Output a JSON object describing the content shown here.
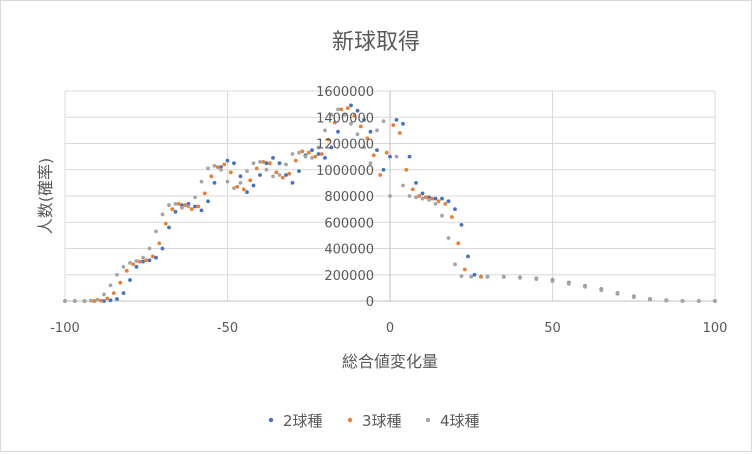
{
  "chart_data": {
    "type": "scatter",
    "title": "新球取得",
    "xlabel": "総合値変化量",
    "ylabel": "人数(確率)",
    "xlim": [
      -100,
      100
    ],
    "ylim": [
      0,
      1600000
    ],
    "xticks": [
      "-100",
      "-50",
      "0",
      "50",
      "100"
    ],
    "yticks": [
      "0",
      "200000",
      "400000",
      "600000",
      "800000",
      "1000000",
      "1200000",
      "1400000",
      "1600000"
    ],
    "grid": "major gridlines on both axes",
    "legend_position": "bottom",
    "colors": {
      "2": "#4472c4",
      "3": "#ed7d31",
      "4": "#a5a5a5"
    },
    "series": [
      {
        "name": "2球種",
        "color": "#4472c4",
        "points": [
          [
            -100,
            0
          ],
          [
            -97,
            0
          ],
          [
            -94,
            0
          ],
          [
            -91,
            0
          ],
          [
            -88,
            0
          ],
          [
            -86,
            5000
          ],
          [
            -84,
            15000
          ],
          [
            -82,
            60000
          ],
          [
            -80,
            160000
          ],
          [
            -78,
            260000
          ],
          [
            -76,
            300000
          ],
          [
            -74,
            310000
          ],
          [
            -72,
            330000
          ],
          [
            -70,
            400000
          ],
          [
            -68,
            560000
          ],
          [
            -66,
            680000
          ],
          [
            -64,
            730000
          ],
          [
            -62,
            740000
          ],
          [
            -60,
            720000
          ],
          [
            -58,
            690000
          ],
          [
            -56,
            760000
          ],
          [
            -54,
            900000
          ],
          [
            -52,
            1020000
          ],
          [
            -50,
            1070000
          ],
          [
            -48,
            1050000
          ],
          [
            -46,
            950000
          ],
          [
            -44,
            830000
          ],
          [
            -42,
            880000
          ],
          [
            -40,
            960000
          ],
          [
            -38,
            1050000
          ],
          [
            -36,
            1090000
          ],
          [
            -34,
            1050000
          ],
          [
            -32,
            960000
          ],
          [
            -30,
            900000
          ],
          [
            -28,
            990000
          ],
          [
            -26,
            1110000
          ],
          [
            -24,
            1150000
          ],
          [
            -22,
            1120000
          ],
          [
            -20,
            1090000
          ],
          [
            -18,
            1170000
          ],
          [
            -16,
            1290000
          ],
          [
            -14,
            1420000
          ],
          [
            -12,
            1490000
          ],
          [
            -10,
            1450000
          ],
          [
            -8,
            1380000
          ],
          [
            -6,
            1290000
          ],
          [
            -4,
            1150000
          ],
          [
            -2,
            1000000
          ],
          [
            0,
            1100000
          ],
          [
            2,
            1380000
          ],
          [
            4,
            1350000
          ],
          [
            6,
            1100000
          ],
          [
            8,
            900000
          ],
          [
            10,
            820000
          ],
          [
            12,
            790000
          ],
          [
            14,
            780000
          ],
          [
            16,
            780000
          ],
          [
            18,
            760000
          ],
          [
            20,
            700000
          ],
          [
            22,
            580000
          ],
          [
            24,
            340000
          ],
          [
            26,
            200000
          ],
          [
            28,
            185000
          ],
          [
            30,
            185000
          ],
          [
            35,
            185000
          ],
          [
            40,
            180000
          ],
          [
            45,
            172000
          ],
          [
            50,
            160000
          ],
          [
            55,
            140000
          ],
          [
            60,
            115000
          ],
          [
            65,
            90000
          ],
          [
            70,
            60000
          ],
          [
            75,
            35000
          ],
          [
            80,
            15000
          ],
          [
            85,
            5000
          ],
          [
            90,
            1000
          ],
          [
            95,
            0
          ],
          [
            100,
            0
          ]
        ]
      },
      {
        "name": "3球種",
        "color": "#ed7d31",
        "points": [
          [
            -100,
            0
          ],
          [
            -97,
            0
          ],
          [
            -94,
            0
          ],
          [
            -91,
            0
          ],
          [
            -89,
            3000
          ],
          [
            -87,
            20000
          ],
          [
            -85,
            60000
          ],
          [
            -83,
            140000
          ],
          [
            -81,
            230000
          ],
          [
            -79,
            280000
          ],
          [
            -77,
            300000
          ],
          [
            -75,
            310000
          ],
          [
            -73,
            340000
          ],
          [
            -71,
            440000
          ],
          [
            -69,
            590000
          ],
          [
            -67,
            700000
          ],
          [
            -65,
            740000
          ],
          [
            -63,
            730000
          ],
          [
            -61,
            700000
          ],
          [
            -59,
            720000
          ],
          [
            -57,
            820000
          ],
          [
            -55,
            950000
          ],
          [
            -53,
            1020000
          ],
          [
            -51,
            1040000
          ],
          [
            -49,
            980000
          ],
          [
            -47,
            870000
          ],
          [
            -45,
            850000
          ],
          [
            -43,
            920000
          ],
          [
            -41,
            1010000
          ],
          [
            -39,
            1060000
          ],
          [
            -37,
            1050000
          ],
          [
            -35,
            980000
          ],
          [
            -33,
            940000
          ],
          [
            -31,
            970000
          ],
          [
            -29,
            1070000
          ],
          [
            -27,
            1140000
          ],
          [
            -25,
            1130000
          ],
          [
            -23,
            1100000
          ],
          [
            -21,
            1120000
          ],
          [
            -19,
            1230000
          ],
          [
            -17,
            1360000
          ],
          [
            -15,
            1460000
          ],
          [
            -13,
            1470000
          ],
          [
            -11,
            1410000
          ],
          [
            -9,
            1330000
          ],
          [
            -7,
            1240000
          ],
          [
            -5,
            1110000
          ],
          [
            -3,
            960000
          ],
          [
            -1,
            1130000
          ],
          [
            1,
            1340000
          ],
          [
            3,
            1280000
          ],
          [
            5,
            1000000
          ],
          [
            7,
            850000
          ],
          [
            9,
            800000
          ],
          [
            11,
            790000
          ],
          [
            13,
            780000
          ],
          [
            15,
            760000
          ],
          [
            17,
            740000
          ],
          [
            19,
            640000
          ],
          [
            21,
            440000
          ],
          [
            23,
            240000
          ],
          [
            25,
            185000
          ],
          [
            28,
            185000
          ],
          [
            35,
            185000
          ],
          [
            40,
            178000
          ],
          [
            45,
            170000
          ],
          [
            50,
            155000
          ],
          [
            55,
            135000
          ],
          [
            60,
            112000
          ],
          [
            65,
            85000
          ],
          [
            70,
            57000
          ],
          [
            75,
            32000
          ],
          [
            80,
            13000
          ],
          [
            85,
            4000
          ],
          [
            90,
            500
          ],
          [
            95,
            0
          ],
          [
            100,
            0
          ]
        ]
      },
      {
        "name": "4球種",
        "color": "#a5a5a5",
        "points": [
          [
            -100,
            0
          ],
          [
            -97,
            0
          ],
          [
            -94,
            0
          ],
          [
            -92,
            2000
          ],
          [
            -90,
            10000
          ],
          [
            -88,
            50000
          ],
          [
            -86,
            120000
          ],
          [
            -84,
            200000
          ],
          [
            -82,
            260000
          ],
          [
            -80,
            290000
          ],
          [
            -78,
            305000
          ],
          [
            -76,
            330000
          ],
          [
            -74,
            400000
          ],
          [
            -72,
            530000
          ],
          [
            -70,
            660000
          ],
          [
            -68,
            730000
          ],
          [
            -66,
            740000
          ],
          [
            -64,
            710000
          ],
          [
            -62,
            720000
          ],
          [
            -60,
            790000
          ],
          [
            -58,
            910000
          ],
          [
            -56,
            1010000
          ],
          [
            -54,
            1030000
          ],
          [
            -52,
            1000000
          ],
          [
            -50,
            910000
          ],
          [
            -48,
            860000
          ],
          [
            -46,
            900000
          ],
          [
            -44,
            990000
          ],
          [
            -42,
            1050000
          ],
          [
            -40,
            1060000
          ],
          [
            -38,
            1000000
          ],
          [
            -36,
            950000
          ],
          [
            -34,
            960000
          ],
          [
            -32,
            1040000
          ],
          [
            -30,
            1120000
          ],
          [
            -28,
            1130000
          ],
          [
            -26,
            1100000
          ],
          [
            -24,
            1090000
          ],
          [
            -22,
            1170000
          ],
          [
            -20,
            1300000
          ],
          [
            -18,
            1420000
          ],
          [
            -16,
            1460000
          ],
          [
            -14,
            1420000
          ],
          [
            -12,
            1350000
          ],
          [
            -10,
            1270000
          ],
          [
            -8,
            1170000
          ],
          [
            -6,
            1050000
          ],
          [
            -4,
            1300000
          ],
          [
            -2,
            1370000
          ],
          [
            0,
            800000
          ],
          [
            2,
            1100000
          ],
          [
            4,
            880000
          ],
          [
            6,
            800000
          ],
          [
            8,
            790000
          ],
          [
            10,
            780000
          ],
          [
            12,
            770000
          ],
          [
            14,
            740000
          ],
          [
            16,
            650000
          ],
          [
            18,
            480000
          ],
          [
            20,
            280000
          ],
          [
            22,
            190000
          ],
          [
            25,
            185000
          ],
          [
            30,
            185000
          ],
          [
            35,
            183000
          ],
          [
            40,
            176000
          ],
          [
            45,
            167000
          ],
          [
            50,
            152000
          ],
          [
            55,
            132000
          ],
          [
            60,
            108000
          ],
          [
            65,
            82000
          ],
          [
            70,
            54000
          ],
          [
            75,
            29000
          ],
          [
            80,
            11000
          ],
          [
            85,
            3000
          ],
          [
            90,
            300
          ],
          [
            95,
            0
          ],
          [
            100,
            0
          ]
        ]
      }
    ]
  }
}
